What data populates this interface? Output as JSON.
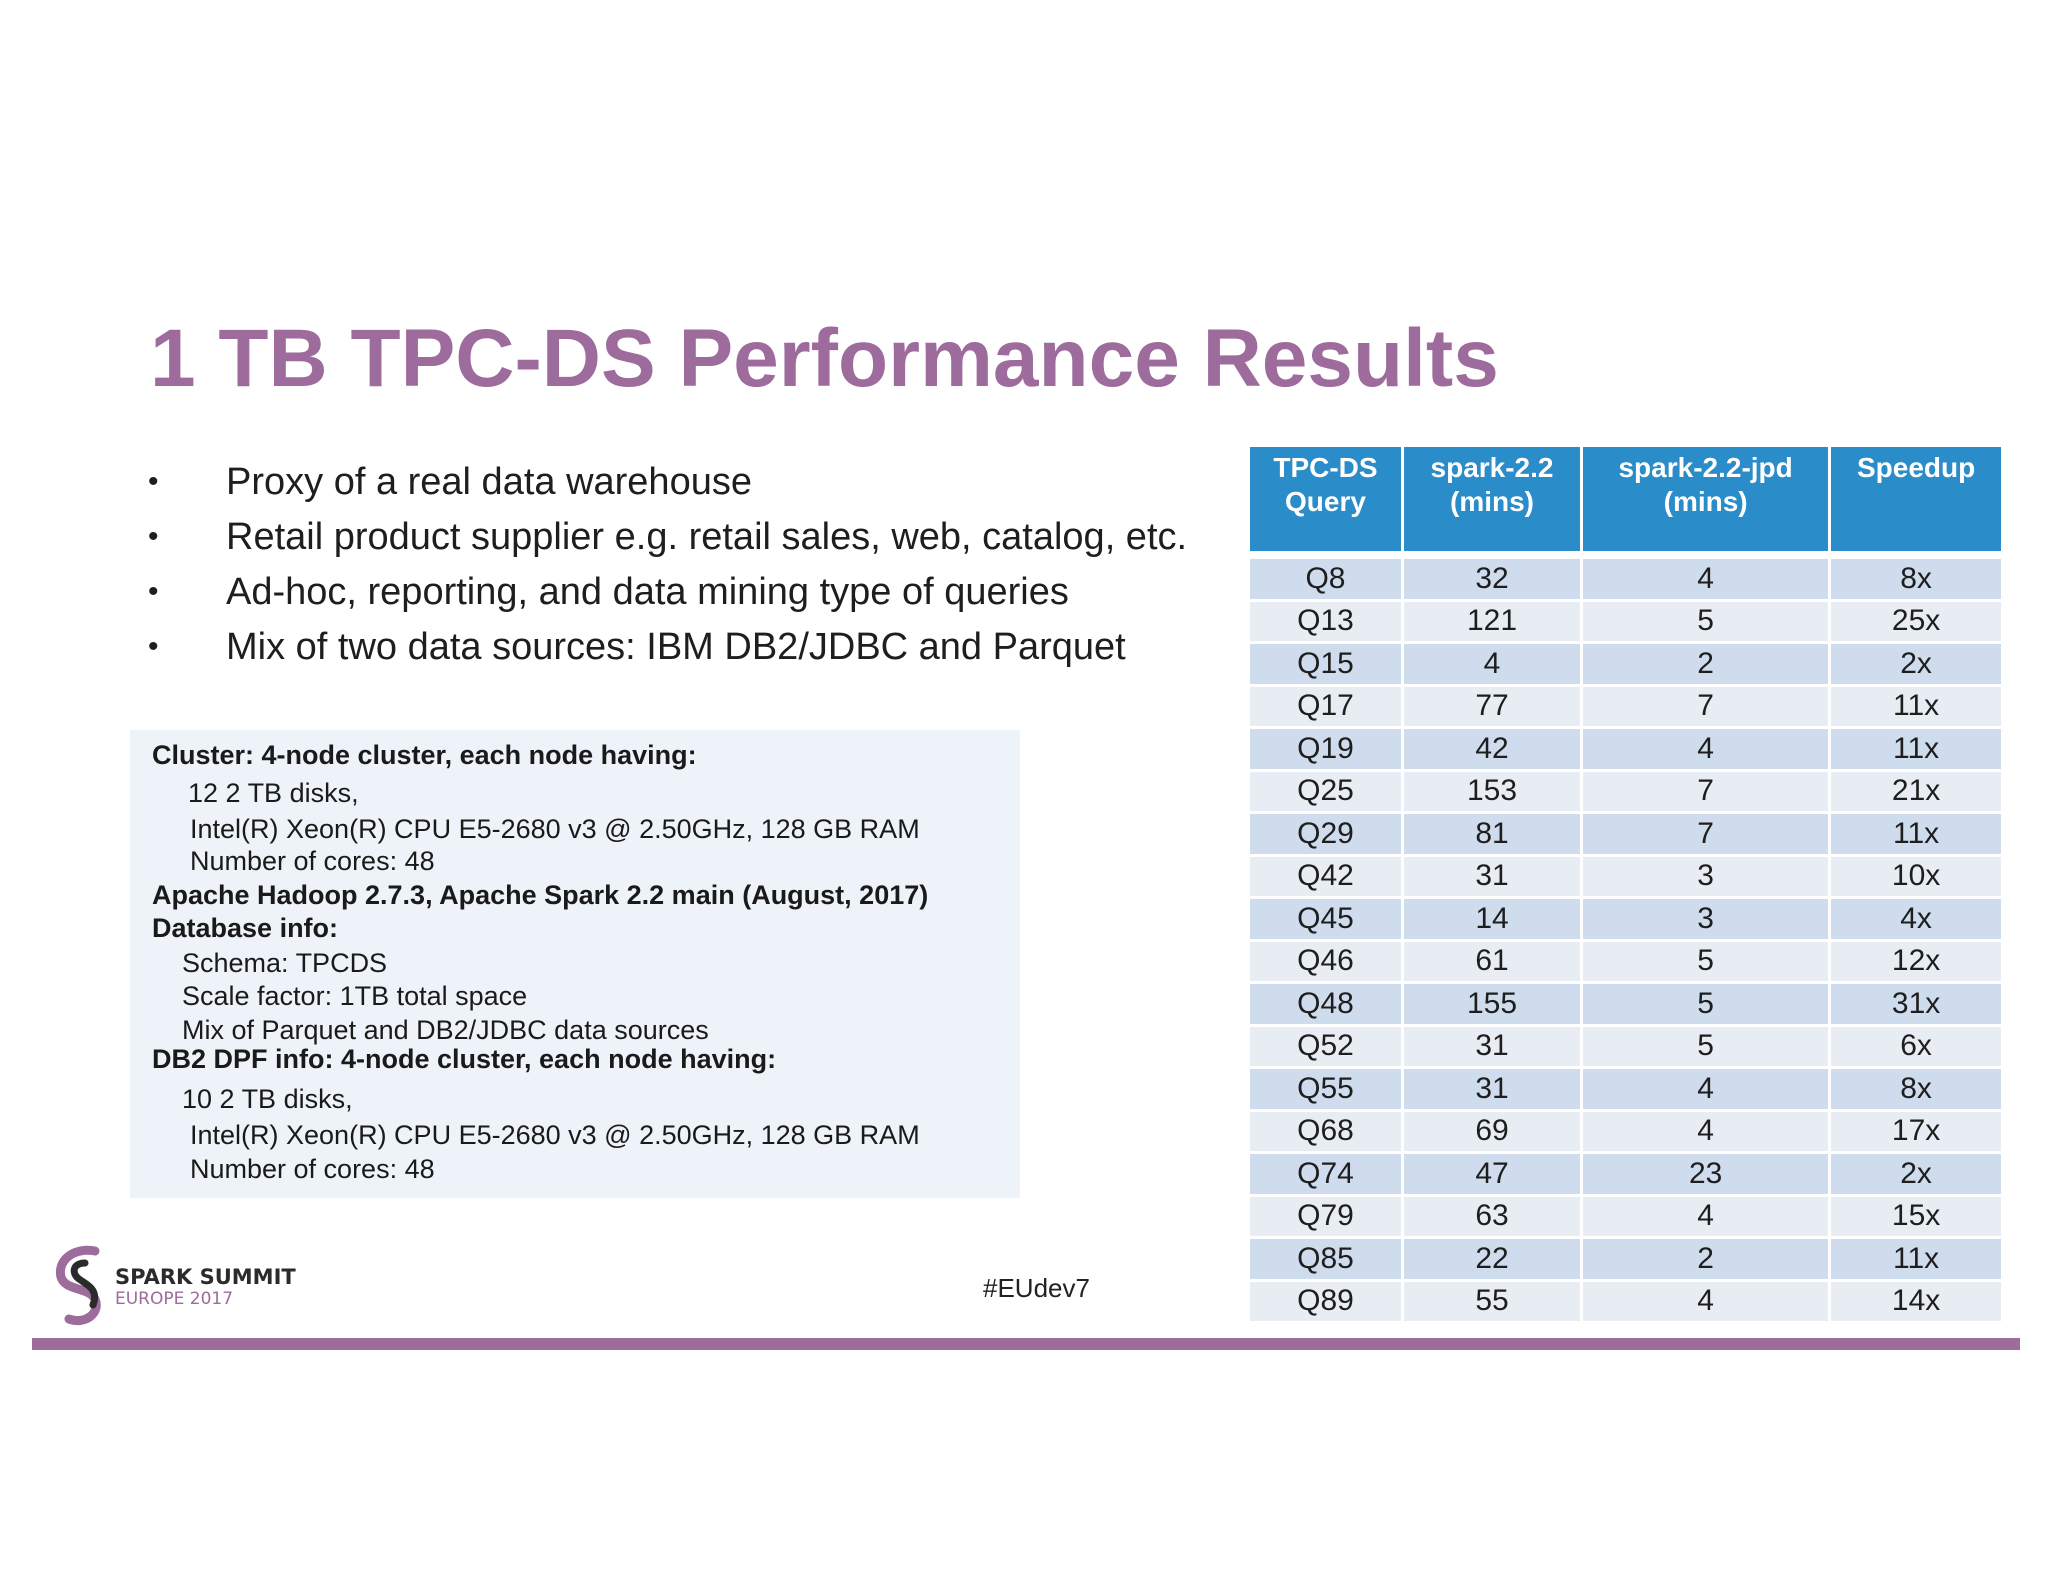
{
  "title": "1 TB TPC-DS Performance Results",
  "bullets": [
    "Proxy of a real data warehouse",
    "Retail product supplier e.g. retail sales, web, catalog, etc.",
    "Ad-hoc, reporting, and data mining type of queries",
    "Mix of two data sources: IBM DB2/JDBC and Parquet"
  ],
  "bullet_symbol": "•",
  "info": {
    "cluster_heading": "Cluster: 4-node cluster, each node having:",
    "cluster_disks": "12 2 TB disks,",
    "cluster_cpu": "Intel(R) Xeon(R) CPU E5-2680 v3 @ 2.50GHz, 128 GB RAM",
    "cluster_cores": "Number of cores: 48",
    "software": "Apache Hadoop 2.7.3,  Apache Spark 2.2 main (August, 2017)",
    "db_heading": "Database info:",
    "db_schema": "Schema: TPCDS",
    "db_scale": "Scale factor: 1TB total space",
    "db_mix": "Mix of Parquet and DB2/JDBC data sources",
    "dpf_heading": "DB2 DPF  info: 4-node cluster, each node having:",
    "dpf_disks": "10 2 TB disks,",
    "dpf_cpu": "Intel(R) Xeon(R) CPU E5-2680 v3 @ 2.50GHz, 128 GB RAM",
    "dpf_cores": "Number of cores: 48"
  },
  "table": {
    "headers": [
      [
        "TPC-DS",
        "Query"
      ],
      [
        "spark-2.2",
        "(mins)"
      ],
      [
        "spark-2.2-jpd",
        "(mins)"
      ],
      [
        "Speedup",
        ""
      ]
    ],
    "rows": [
      [
        "Q8",
        "32",
        "4",
        "8x"
      ],
      [
        "Q13",
        "121",
        "5",
        "25x"
      ],
      [
        "Q15",
        "4",
        "2",
        "2x"
      ],
      [
        "Q17",
        "77",
        "7",
        "11x"
      ],
      [
        "Q19",
        "42",
        "4",
        "11x"
      ],
      [
        "Q25",
        "153",
        "7",
        "21x"
      ],
      [
        "Q29",
        "81",
        "7",
        "11x"
      ],
      [
        "Q42",
        "31",
        "3",
        "10x"
      ],
      [
        "Q45",
        "14",
        "3",
        "4x"
      ],
      [
        "Q46",
        "61",
        "5",
        "12x"
      ],
      [
        "Q48",
        "155",
        "5",
        "31x"
      ],
      [
        "Q52",
        "31",
        "5",
        "6x"
      ],
      [
        "Q55",
        "31",
        "4",
        "8x"
      ],
      [
        "Q68",
        "69",
        "4",
        "17x"
      ],
      [
        "Q74",
        "47",
        "23",
        "2x"
      ],
      [
        "Q79",
        "63",
        "4",
        "15x"
      ],
      [
        "Q85",
        "22",
        "2",
        "11x"
      ],
      [
        "Q89",
        "55",
        "4",
        "14x"
      ]
    ]
  },
  "logo": {
    "line1": "SPARK SUMMIT",
    "line2": "EUROPE 2017"
  },
  "hashtag": "#EUdev7",
  "colors": {
    "accent": "#9d6b9c",
    "header_blue": "#2a8cc8",
    "row_odd": "#cfdced",
    "row_even": "#e8edf4"
  }
}
